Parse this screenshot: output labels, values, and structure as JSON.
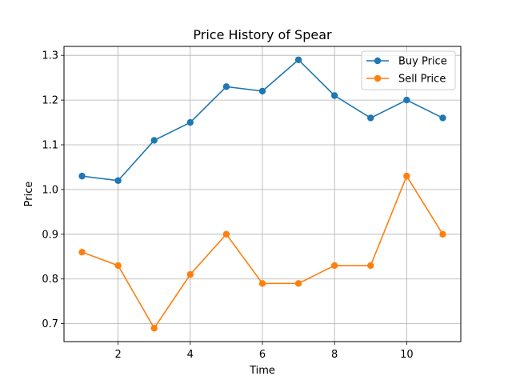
{
  "chart_data": {
    "type": "line",
    "title": "Price History of Spear",
    "xlabel": "Time",
    "ylabel": "Price",
    "x": [
      1,
      2,
      3,
      4,
      5,
      6,
      7,
      8,
      9,
      10,
      11
    ],
    "xlim": [
      0.5,
      11.5
    ],
    "ylim": [
      0.66,
      1.32
    ],
    "xticks": [
      2,
      4,
      6,
      8,
      10
    ],
    "yticks": [
      0.7,
      0.8,
      0.9,
      1.0,
      1.1,
      1.2,
      1.3
    ],
    "xtick_labels": [
      "2",
      "4",
      "6",
      "8",
      "10"
    ],
    "ytick_labels": [
      "0.7",
      "0.8",
      "0.9",
      "1.0",
      "1.1",
      "1.2",
      "1.3"
    ],
    "grid": true,
    "legend_position": "top-right",
    "series": [
      {
        "name": "Buy Price",
        "color": "#1f77b4",
        "values": [
          1.03,
          1.02,
          1.11,
          1.15,
          1.23,
          1.22,
          1.29,
          1.21,
          1.16,
          1.2,
          1.16
        ]
      },
      {
        "name": "Sell Price",
        "color": "#ff7f0e",
        "values": [
          0.86,
          0.83,
          0.69,
          0.81,
          0.9,
          0.79,
          0.79,
          0.83,
          0.83,
          1.03,
          0.9
        ]
      }
    ]
  }
}
